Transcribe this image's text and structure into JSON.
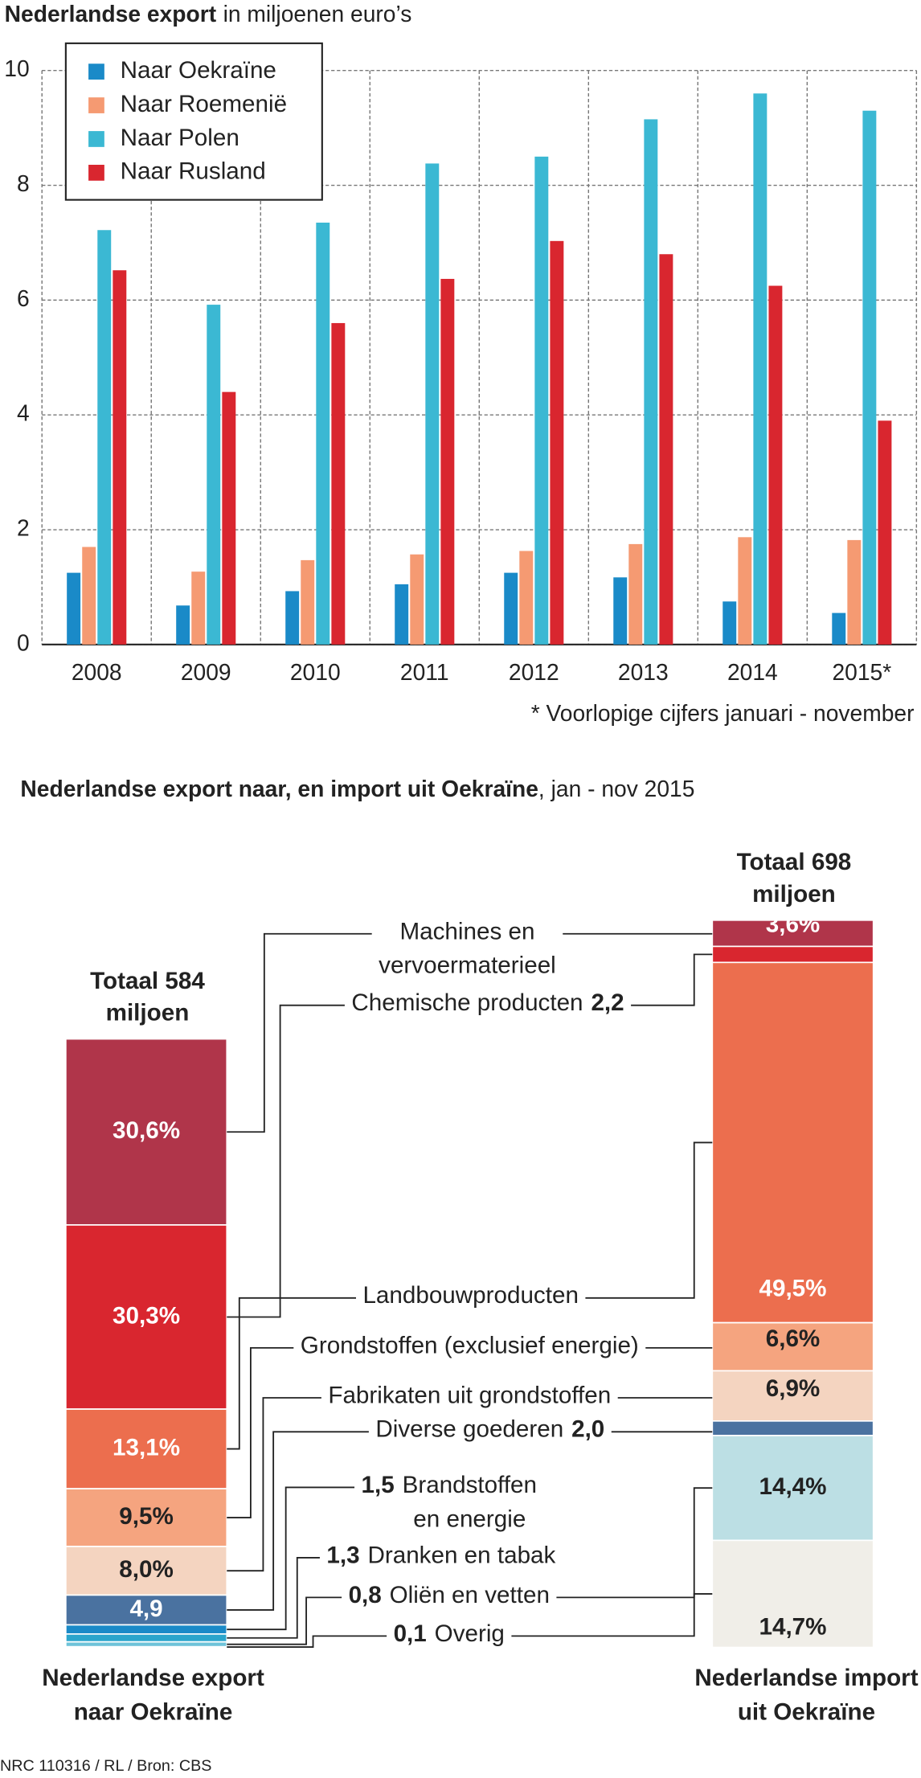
{
  "chart_data": [
    {
      "type": "bar",
      "title": "Nederlandse export",
      "subtitle": "in miljoenen euro’s",
      "categories": [
        "2008",
        "2009",
        "2010",
        "2011",
        "2012",
        "2013",
        "2014",
        "2015*"
      ],
      "series": [
        {
          "name": "Naar Oekraïne",
          "color": "#1a8ac8",
          "values": [
            1.25,
            0.68,
            0.93,
            1.05,
            1.25,
            1.17,
            0.75,
            0.55
          ]
        },
        {
          "name": "Naar Roemenië",
          "color": "#f59a72",
          "values": [
            1.7,
            1.27,
            1.47,
            1.57,
            1.63,
            1.75,
            1.87,
            1.82
          ]
        },
        {
          "name": "Naar Polen",
          "color": "#3bb8d3",
          "values": [
            7.22,
            5.92,
            7.35,
            8.38,
            8.5,
            9.15,
            9.6,
            9.3
          ]
        },
        {
          "name": "Naar Rusland",
          "color": "#d9262f",
          "values": [
            6.52,
            4.4,
            5.6,
            6.37,
            7.03,
            6.8,
            6.25,
            3.9
          ]
        }
      ],
      "ylim": [
        0,
        10
      ],
      "yticks": [
        0,
        2,
        4,
        6,
        8,
        10
      ],
      "grid": true,
      "legend": "upper left",
      "note": "* Voorlopige cijfers januari - november"
    },
    {
      "type": "stacked_bar",
      "title": "Nederlandse export naar, en  import uit  Oekraïne",
      "subtitle": ", jan - nov 2015",
      "categories": [
        "Machines en vervoermaterieel",
        "Chemische producten",
        "Landbouwproducten",
        "Grondstoffen (exclusief energie)",
        "Fabrikaten uit grondstoffen",
        "Diverse goederen",
        "Brandstoffen en energie",
        "Dranken en tabak",
        "Oliën en vetten",
        "Overig"
      ],
      "series": [
        {
          "name": "Nederlandse export naar Oekraïne",
          "total": 584,
          "total_label": "Totaal 584 miljoen",
          "colors": [
            "#b0354a",
            "#d9262f",
            "#ec6e4e",
            "#f5a47f",
            "#f4d4c0",
            "#4a72a0",
            "#1a8ac8",
            "#2aa5cc",
            "#6ec3d9",
            "#a9d8e4"
          ],
          "values": [
            30.6,
            30.3,
            13.1,
            9.5,
            8.0,
            4.9,
            1.5,
            1.3,
            0.8,
            0.1
          ],
          "value_labels": [
            "30,6%",
            "30,3%",
            "13,1%",
            "9,5%",
            "8,0%",
            "4,9",
            "1,5",
            "1,3",
            "0,8",
            "0,1"
          ]
        },
        {
          "name": "Nederlandse import uit Oekraïne",
          "total": 698,
          "total_label": "Totaal 698 miljoen",
          "colors": [
            "#b0354a",
            "#d9262f",
            "#ec6e4e",
            "#f5a47f",
            "#f4d4c0",
            "#4a72a0",
            null,
            null,
            "#bcdfe4",
            "#f0eee8"
          ],
          "values": [
            3.6,
            2.2,
            49.5,
            6.6,
            6.9,
            2.0,
            null,
            null,
            14.4,
            14.7
          ],
          "value_labels": [
            "3,6%",
            "2,2",
            "49,5%",
            "6,6%",
            "6,9%",
            "2,0",
            null,
            null,
            "14,4%",
            "14,7%"
          ]
        }
      ]
    }
  ],
  "credit": "NRC 110316 / RL / Bron: CBS"
}
